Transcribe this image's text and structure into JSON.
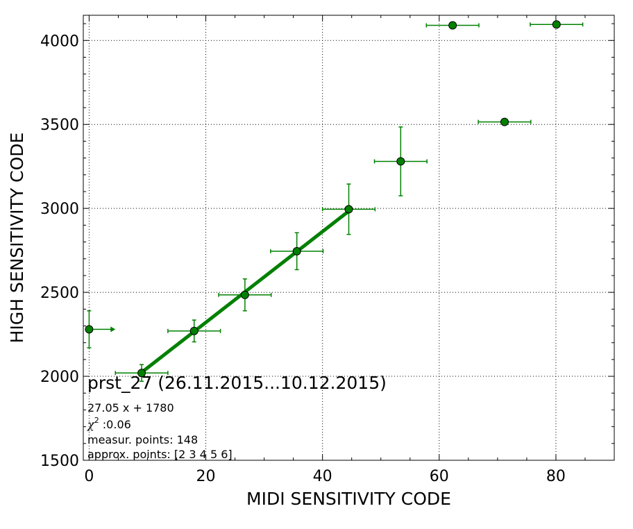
{
  "chart_data": {
    "type": "scatter",
    "xlabel": "MIDI SENSITIVITY CODE",
    "ylabel": "HIGH SENSITIVITY CODE",
    "xlim": [
      -1,
      90
    ],
    "ylim": [
      1500,
      4150
    ],
    "xticks": [
      0,
      20,
      40,
      60,
      80
    ],
    "xtick_labels": [
      "0",
      "20",
      "40",
      "60",
      "80"
    ],
    "yticks": [
      1500,
      2000,
      2500,
      3000,
      3500,
      4000
    ],
    "ytick_labels": [
      "1500",
      "2000",
      "2500",
      "3000",
      "3500",
      "4000"
    ],
    "grid": true,
    "colors": {
      "points": "#008000",
      "edge": "#000000",
      "fit": "#008000"
    },
    "series": [
      {
        "type": "errorbar-points",
        "points": [
          {
            "x": 0,
            "y": 2280,
            "xerr": 0,
            "yerr": 110,
            "arrow_right": true
          },
          {
            "x": 9,
            "y": 2020,
            "xerr": 4.5,
            "yerr": 50
          },
          {
            "x": 18,
            "y": 2270,
            "xerr": 4.5,
            "yerr": 65
          },
          {
            "x": 26.7,
            "y": 2485,
            "xerr": 4.5,
            "yerr": 95
          },
          {
            "x": 35.6,
            "y": 2745,
            "xerr": 4.5,
            "yerr": 110
          },
          {
            "x": 44.5,
            "y": 2995,
            "xerr": 4.5,
            "yerr": 150
          },
          {
            "x": 53.4,
            "y": 3280,
            "xerr": 4.5,
            "yerr": 205
          },
          {
            "x": 62.3,
            "y": 4090,
            "xerr": 4.5,
            "yerr": 0
          },
          {
            "x": 71.2,
            "y": 3515,
            "xerr": 4.5,
            "yerr": 0
          },
          {
            "x": 80.1,
            "y": 4095,
            "xerr": 4.5,
            "yerr": 0
          }
        ]
      },
      {
        "type": "fit-line",
        "x_range": [
          9,
          44.5
        ],
        "slope": 27.05,
        "intercept": 1780
      }
    ]
  },
  "annotations": {
    "title": "prst_27 (26.11.2015...10.12.2015)",
    "equation": "27.05 x + 1780",
    "chi_symbol": "χ",
    "chi_exponent": "2",
    "chi_value": " :0.06",
    "measured_points": "measur. points: 148",
    "approx_points": "approx. points: [2 3 4 5 6]"
  }
}
